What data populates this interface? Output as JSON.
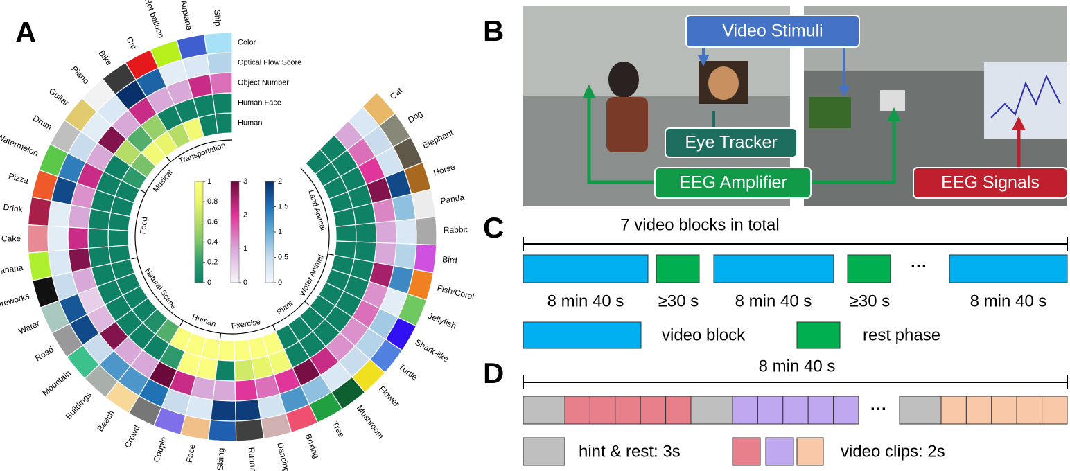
{
  "panel_labels": [
    "A",
    "B",
    "C",
    "D"
  ],
  "panel_a": {
    "ring_labels": [
      "Human",
      "Human Face",
      "Object Number",
      "Optical Flow Score",
      "Color"
    ],
    "categories": [
      {
        "name": "Ship",
        "color": "#a6e1f7",
        "values": [
          0,
          0,
          1.5,
          0.6
        ]
      },
      {
        "name": "Airplane",
        "color": "#3f5fd0",
        "values": [
          0,
          0,
          2.2,
          0.3
        ]
      },
      {
        "name": "Hot balloon",
        "color": "#b8f01e",
        "values": [
          0.9,
          0,
          1,
          0.2
        ]
      },
      {
        "name": "Car",
        "color": "#e5191c",
        "values": [
          0.6,
          0,
          1,
          1.6
        ]
      },
      {
        "name": "Bike",
        "color": "#3a3a3a",
        "values": [
          0.8,
          0.5,
          2.2,
          2
        ]
      },
      {
        "name": "Piano",
        "color": "#f2f2f2",
        "values": [
          0.9,
          0.3,
          1,
          0.3
        ]
      },
      {
        "name": "Guitar",
        "color": "#e2cb6e",
        "values": [
          0.4,
          0.6,
          2.8,
          0.2
        ]
      },
      {
        "name": "Drum",
        "color": "#bfbfbf",
        "values": [
          0.2,
          0,
          1,
          0.5
        ]
      },
      {
        "name": "Watermelon",
        "color": "#5bc84a",
        "values": [
          0,
          0,
          2.2,
          1.4
        ]
      },
      {
        "name": "Pizza",
        "color": "#ee5a2a",
        "values": [
          0,
          0,
          1.2,
          1.8
        ]
      },
      {
        "name": "Drink",
        "color": "#a8204a",
        "values": [
          0,
          0,
          1,
          0.2
        ]
      },
      {
        "name": "Cake",
        "color": "#e88a94",
        "values": [
          0,
          0,
          2.2,
          0.2
        ]
      },
      {
        "name": "Banana",
        "color": "#aef030",
        "values": [
          0,
          0,
          2.8,
          0.3
        ]
      },
      {
        "name": "Fireworks",
        "color": "#111111",
        "values": [
          0,
          0,
          1,
          0.5
        ]
      },
      {
        "name": "Water",
        "color": "#a8c8c0",
        "values": [
          0,
          0,
          0.5,
          1.7
        ]
      },
      {
        "name": "Road",
        "color": "#999999",
        "values": [
          0,
          0,
          0.8,
          1.8
        ]
      },
      {
        "name": "Mountain",
        "color": "#3cc08c",
        "values": [
          0,
          0,
          2.8,
          0.5
        ]
      },
      {
        "name": "Buildings",
        "color": "#a9b0ac",
        "values": [
          0.1,
          0,
          1,
          1.2
        ]
      },
      {
        "name": "Beach",
        "color": "#f8d898",
        "values": [
          0.3,
          0,
          1,
          1.2
        ]
      },
      {
        "name": "Crowd",
        "color": "#777777",
        "values": [
          1,
          0.2,
          3,
          1.5
        ]
      },
      {
        "name": "Couple",
        "color": "#7f6fe8",
        "values": [
          1,
          1,
          2.2,
          0.5
        ]
      },
      {
        "name": "Face",
        "color": "#f0c088",
        "values": [
          1,
          1,
          1,
          0.3
        ]
      },
      {
        "name": "Skiing",
        "color": "#1f5fb0",
        "values": [
          1,
          0,
          1,
          1.9
        ]
      },
      {
        "name": "Running",
        "color": "#404040",
        "values": [
          1,
          0.7,
          2,
          1.9
        ]
      },
      {
        "name": "Dancing",
        "color": "#d0b0b0",
        "values": [
          1,
          0.8,
          1.5,
          0.4
        ]
      },
      {
        "name": "Boxing",
        "color": "#f05070",
        "values": [
          1,
          0.9,
          2,
          1.2
        ]
      },
      {
        "name": "Tree",
        "color": "#20a040",
        "values": [
          0,
          0,
          2.9,
          0.8
        ]
      },
      {
        "name": "Mushroom",
        "color": "#0f6030",
        "values": [
          0,
          0,
          2.2,
          0.3
        ]
      },
      {
        "name": "Flower",
        "color": "#f0e020",
        "values": [
          0,
          0,
          1.2,
          0.5
        ]
      },
      {
        "name": "Turtle",
        "color": "#5080e0",
        "values": [
          0,
          0,
          1.2,
          0.6
        ]
      },
      {
        "name": "Shark-like",
        "color": "#3010f0",
        "values": [
          0,
          0,
          1.5,
          0.7
        ]
      },
      {
        "name": "Jellyfish",
        "color": "#70c860",
        "values": [
          0,
          0,
          1.2,
          0.2
        ]
      },
      {
        "name": "Fish/Coral",
        "color": "#f08020",
        "values": [
          0,
          0,
          2.5,
          1.3
        ]
      },
      {
        "name": "Bird",
        "color": "#d050e0",
        "values": [
          0,
          0,
          1,
          0.6
        ]
      },
      {
        "name": "Rabbit",
        "color": "#a8a8a8",
        "values": [
          0,
          0,
          1,
          0.3
        ]
      },
      {
        "name": "Panda",
        "color": "#ececec",
        "values": [
          0,
          0,
          1.3,
          0.8
        ]
      },
      {
        "name": "Horse",
        "color": "#a86820",
        "values": [
          0,
          0,
          2.8,
          1.8
        ]
      },
      {
        "name": "Elephant",
        "color": "#605848",
        "values": [
          0,
          0,
          2,
          0.4
        ]
      },
      {
        "name": "Dog",
        "color": "#888878",
        "values": [
          0,
          0,
          1.5,
          0.5
        ]
      },
      {
        "name": "Cat",
        "color": "#e8b868",
        "values": [
          0,
          0,
          1,
          0.3
        ]
      }
    ],
    "groups": [
      {
        "name": "Transportation",
        "count": 5
      },
      {
        "name": "Musical",
        "count": 3
      },
      {
        "name": "Food",
        "count": 5
      },
      {
        "name": "Natural Scene",
        "count": 6
      },
      {
        "name": "Human",
        "count": 3
      },
      {
        "name": "Exercise",
        "count": 4
      },
      {
        "name": "Plant",
        "count": 3
      },
      {
        "name": "Water Animal",
        "count": 4
      },
      {
        "name": "Land Animal",
        "count": 7
      }
    ],
    "colorbars": [
      {
        "colors": [
          "#0f8266",
          "#2e9a6c",
          "#79c26a",
          "#b5dd66",
          "#e8f46a",
          "#fbfd7e"
        ],
        "lim": [
          0,
          1
        ],
        "ticks": [
          0,
          0.2,
          0.4,
          0.6,
          0.8,
          1
        ]
      },
      {
        "colors": [
          "#f8f6fa",
          "#d8a8d8",
          "#e0359a",
          "#6b0a3a"
        ],
        "lim": [
          0,
          3
        ],
        "ticks": [
          0,
          1,
          2,
          3
        ]
      },
      {
        "colors": [
          "#f5f8fc",
          "#c8dcee",
          "#6aaed6",
          "#2171b5",
          "#08306b"
        ],
        "lim": [
          0,
          2
        ],
        "ticks": [
          0,
          0.5,
          1,
          1.5,
          2
        ]
      }
    ]
  },
  "panel_b": {
    "labels": [
      "Video Stimuli",
      "Eye Tracker",
      "EEG Amplifier",
      "EEG Signals"
    ]
  },
  "panel_c": {
    "title": "7 video blocks in total",
    "durations": [
      "8 min 40 s",
      "≥30 s",
      "8 min 40 s",
      "≥30 s",
      "8 min 40 s"
    ],
    "ellipsis": "···",
    "legend": [
      "video block",
      "rest phase"
    ]
  },
  "panel_d": {
    "title": "8 min 40 s",
    "ellipsis": "···",
    "legend": [
      "hint & rest: 3s",
      "video clips: 2s"
    ]
  }
}
